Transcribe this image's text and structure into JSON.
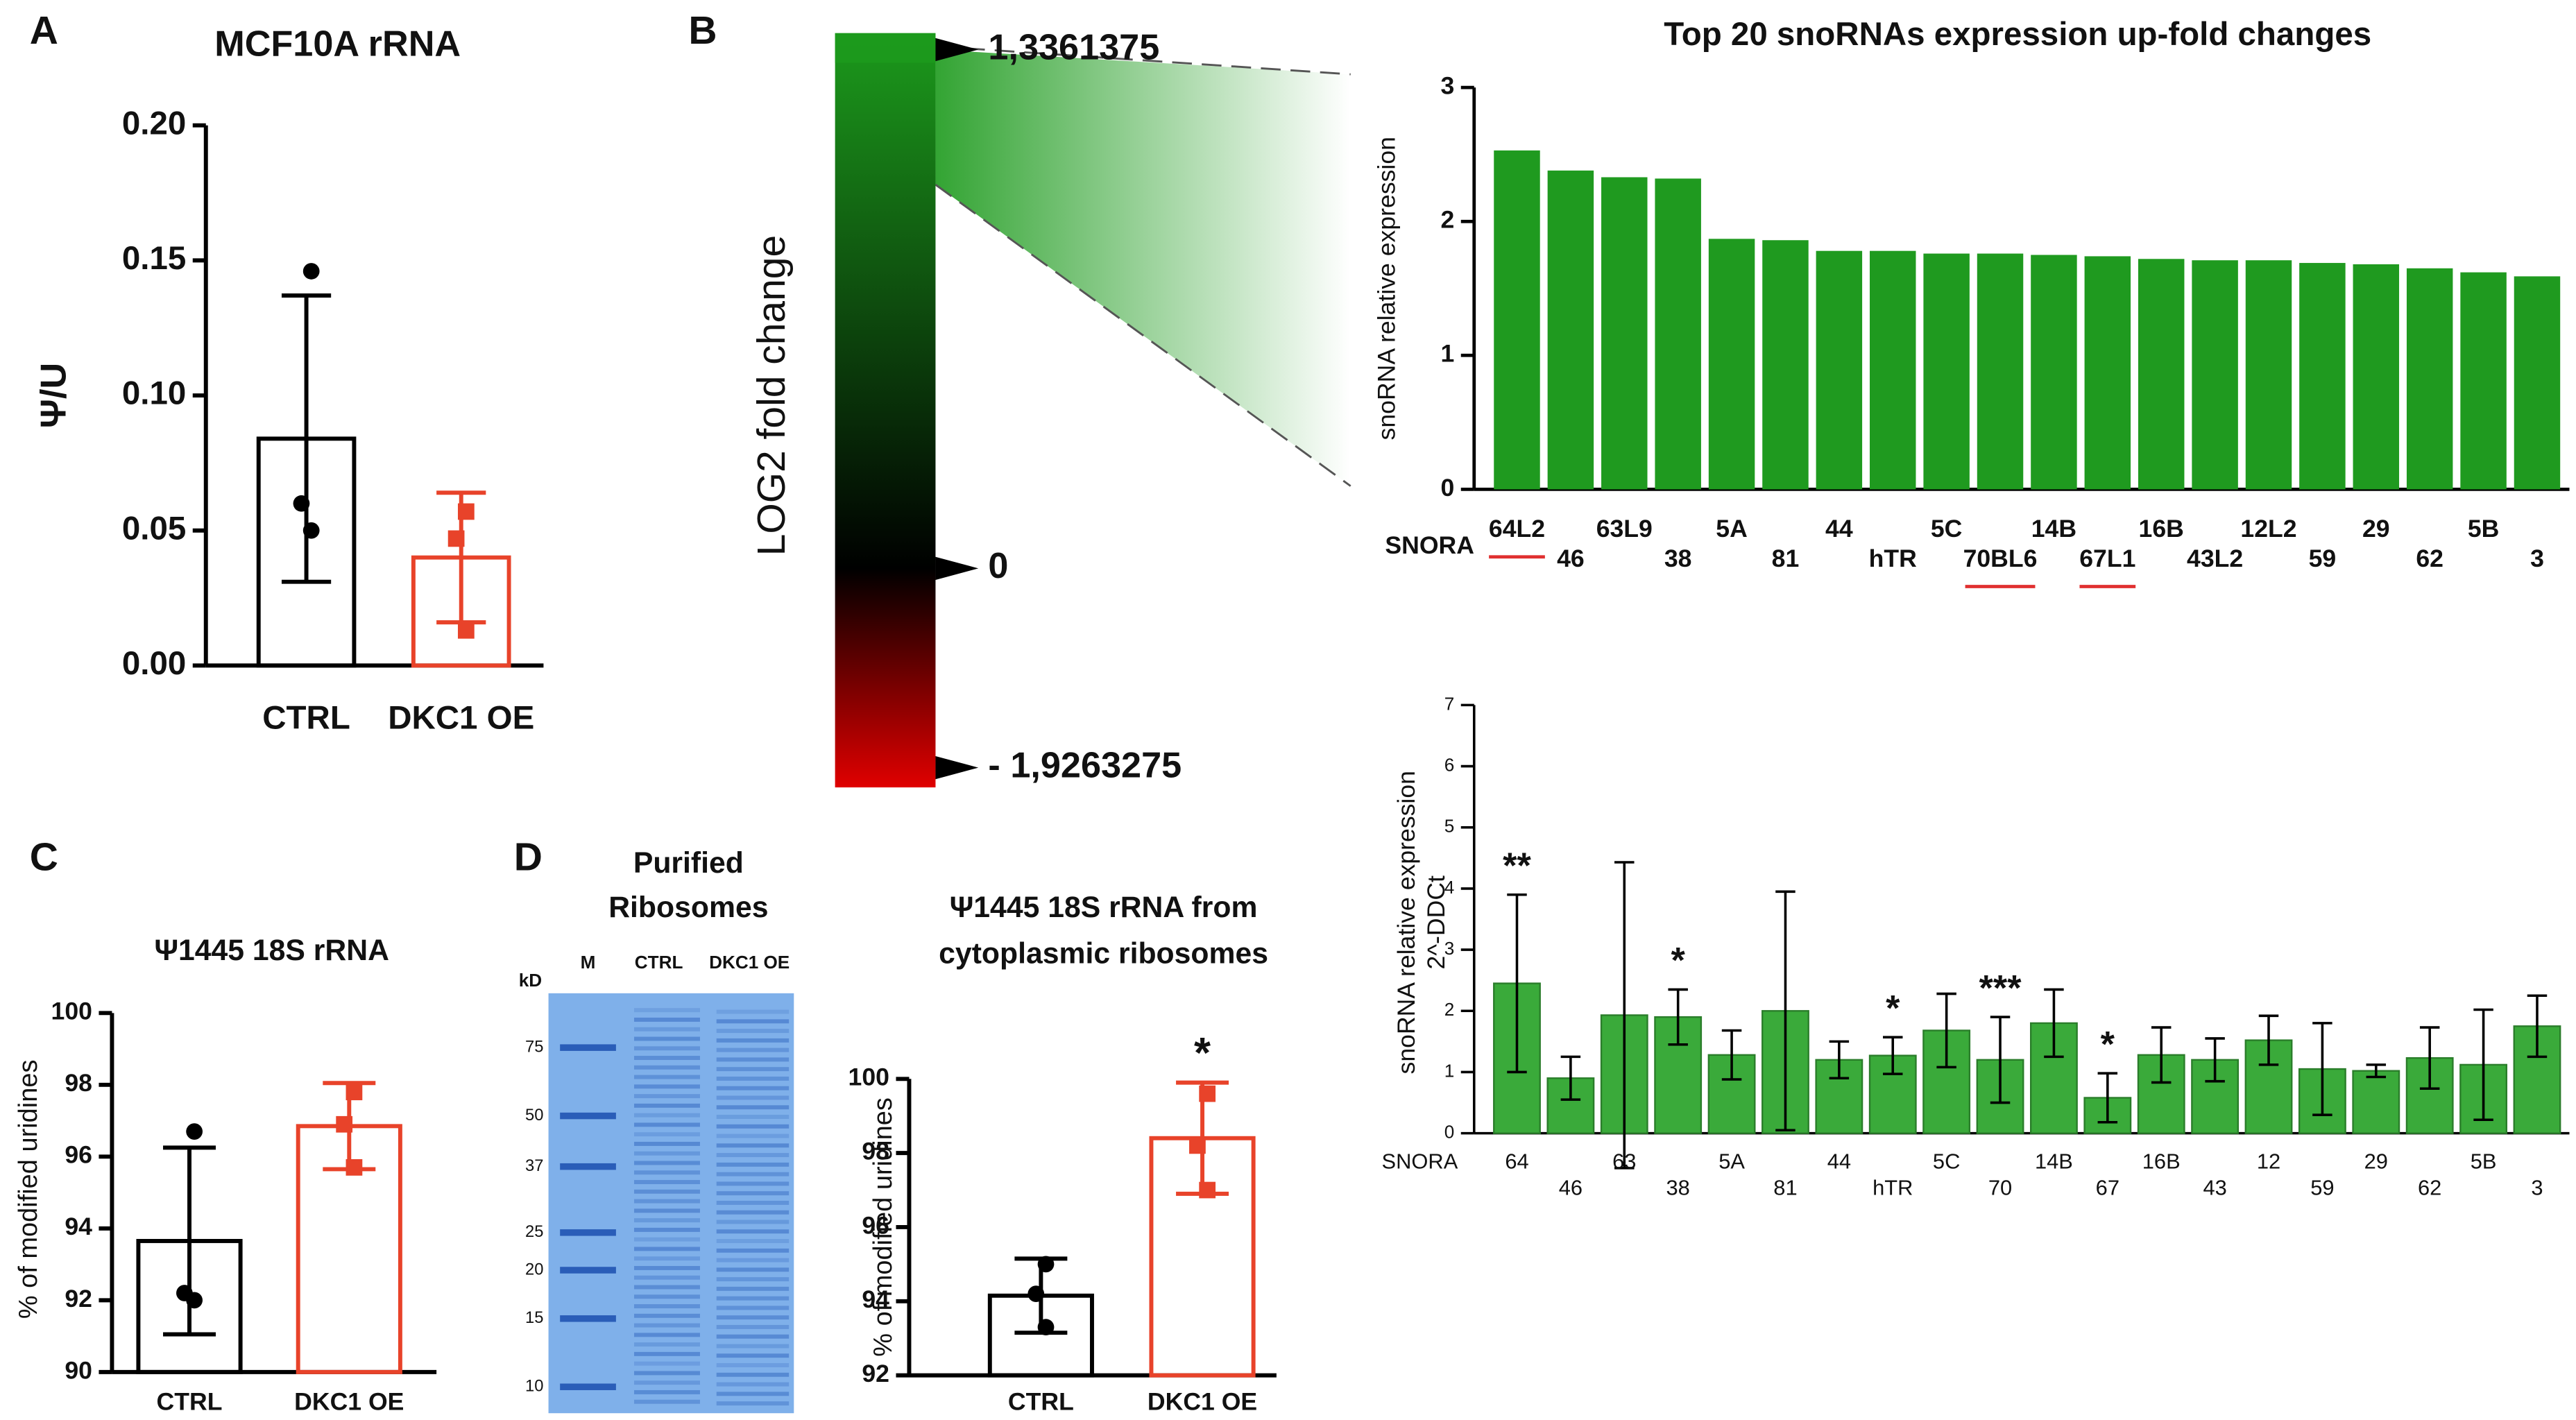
{
  "panels": [
    "A",
    "B",
    "C",
    "D"
  ],
  "chart_data": [
    {
      "type": "bar",
      "title": "MCF10A rRNA",
      "ylabel": "Ψ/U",
      "categories": [
        "CTRL",
        "DKC1 OE"
      ],
      "values": [
        0.084,
        0.04
      ],
      "errors": [
        0.053,
        0.024
      ],
      "points": [
        [
          0.146,
          0.06,
          0.05
        ],
        [
          0.057,
          0.047,
          0.013
        ]
      ],
      "point_markers": [
        "circle",
        "square"
      ],
      "colors": [
        "#000000",
        "#e8432a"
      ],
      "style": "outline",
      "ylim": [
        0,
        0.2
      ],
      "yticks": [
        {
          "value": 0,
          "label": "0.00"
        },
        {
          "value": 0.05,
          "label": "0.05"
        },
        {
          "value": 0.1,
          "label": "0.10"
        },
        {
          "value": 0.15,
          "label": "0.15"
        },
        {
          "value": 0.2,
          "label": "0.20"
        }
      ]
    },
    {
      "type": "colorbar",
      "label": "LOG2 fold change",
      "clim": [
        -1.9263275,
        1.3361375
      ],
      "colors": [
        "#e00000",
        "#000000",
        "#1c9a1c"
      ],
      "ticks": [
        {
          "value": 1.3361375,
          "label": "1,3361375"
        },
        0,
        {
          "value": -1.9263275,
          "label": "- 1,9263275"
        }
      ]
    },
    {
      "type": "bar",
      "title": "Top 20 snoRNAs expression up-fold changes",
      "ylabel": "snoRNA relative expression",
      "xlabel": "SNORA",
      "categories": [
        "64L2",
        "46",
        "63L9",
        "38",
        "5A",
        "81",
        "44",
        "hTR",
        "5C",
        "70BL6",
        "14B",
        "67L1",
        "16B",
        "43L2",
        "12L2",
        "59",
        "29",
        "62",
        "5B",
        "3"
      ],
      "values": [
        2.53,
        2.38,
        2.33,
        2.32,
        1.87,
        1.86,
        1.78,
        1.78,
        1.76,
        1.76,
        1.75,
        1.74,
        1.72,
        1.71,
        1.71,
        1.69,
        1.68,
        1.65,
        1.62,
        1.59
      ],
      "underlined": [
        true,
        false,
        false,
        false,
        false,
        false,
        false,
        false,
        false,
        true,
        false,
        true,
        false,
        false,
        false,
        false,
        false,
        false,
        false,
        false
      ],
      "color": "#1f9a1f",
      "style": "filled",
      "ylim": [
        0,
        3
      ],
      "yticks": [
        0,
        1,
        2,
        3
      ]
    },
    {
      "type": "bar",
      "ylabel": [
        "snoRNA relative expression",
        "2^-DDCt"
      ],
      "xlabel": "SNORA",
      "categories": [
        "64",
        "46",
        "63",
        "38",
        "5A",
        "81",
        "44",
        "hTR",
        "5C",
        "70",
        "14B",
        "67",
        "16B",
        "43",
        "12",
        "59",
        "29",
        "62",
        "5B",
        "3"
      ],
      "values": [
        2.45,
        0.9,
        1.93,
        1.9,
        1.28,
        2.0,
        1.2,
        1.27,
        1.68,
        1.2,
        1.8,
        0.58,
        1.28,
        1.2,
        1.52,
        1.05,
        1.02,
        1.23,
        1.12,
        1.75
      ],
      "errors": [
        1.45,
        0.35,
        2.5,
        0.45,
        0.4,
        1.95,
        0.3,
        0.3,
        0.6,
        0.7,
        0.55,
        0.4,
        0.45,
        0.35,
        0.4,
        0.75,
        0.1,
        0.5,
        0.9,
        0.5
      ],
      "annotations": [
        "**",
        null,
        null,
        "*",
        null,
        null,
        null,
        "*",
        null,
        "***",
        null,
        "*",
        null,
        null,
        null,
        null,
        null,
        null,
        null,
        null
      ],
      "color": "#3aaa3a",
      "style": "filled",
      "ylim": [
        0,
        7
      ],
      "yticks": [
        0,
        1,
        2,
        3,
        4,
        5,
        6,
        7
      ]
    },
    {
      "type": "bar",
      "title": "Ψ1445 18S rRNA",
      "ylabel": "% of modified uridines",
      "categories": [
        "CTRL",
        "DKC1 OE"
      ],
      "values": [
        93.65,
        96.85
      ],
      "errors": [
        2.6,
        1.2
      ],
      "points": [
        [
          96.7,
          92.2,
          92.0
        ],
        [
          97.8,
          96.9,
          95.7
        ]
      ],
      "point_markers": [
        "circle",
        "square"
      ],
      "colors": [
        "#000000",
        "#e8432a"
      ],
      "style": "outline",
      "ylim": [
        90,
        100
      ],
      "yticks": [
        90,
        92,
        94,
        96,
        98,
        100
      ]
    },
    {
      "type": "gel",
      "title": [
        "Purified",
        "Ribosomes"
      ],
      "lanes": [
        "M",
        "CTRL",
        "DKC1 OE"
      ],
      "ylabel": "kD",
      "yticks": [
        75,
        50,
        37,
        25,
        20,
        15,
        10
      ],
      "log": true
    },
    {
      "type": "bar",
      "title": [
        "Ψ1445 18S rRNA from",
        "cytoplasmic ribosomes"
      ],
      "ylabel": "% of modified uridines",
      "categories": [
        "CTRL",
        "DKC1 OE"
      ],
      "values": [
        94.15,
        98.4
      ],
      "errors": [
        1.0,
        1.5
      ],
      "points": [
        [
          95.0,
          94.2,
          93.3
        ],
        [
          99.6,
          98.2,
          97.0
        ]
      ],
      "point_markers": [
        "circle",
        "square"
      ],
      "annotations": [
        null,
        "*"
      ],
      "colors": [
        "#000000",
        "#e8432a"
      ],
      "style": "outline",
      "ylim": [
        92,
        100
      ],
      "yticks": [
        92,
        94,
        96,
        98,
        100
      ]
    }
  ]
}
